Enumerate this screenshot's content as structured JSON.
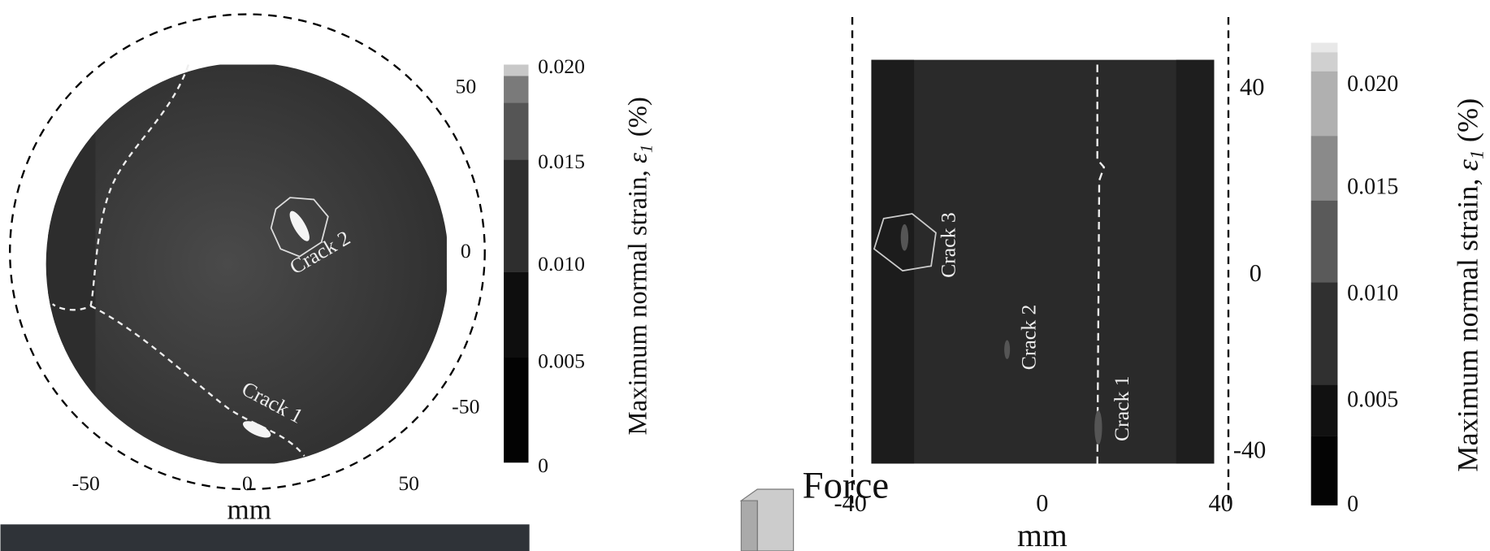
{
  "left_panel": {
    "y_ticks": [
      "50",
      "0",
      "-50"
    ],
    "x_ticks": [
      "-50",
      "0",
      "50"
    ],
    "x_label": "mm",
    "crack_labels": [
      "Crack 2",
      "Crack 1"
    ]
  },
  "left_colorbar": {
    "ticks": [
      "0.020",
      "0.015",
      "0.010",
      "0.005",
      "0"
    ],
    "title": "Maximum normal strain, ",
    "symbol": "ε",
    "subscript": "1",
    "unit": "(%)"
  },
  "right_panel": {
    "y_ticks": [
      "40",
      "0",
      "-40"
    ],
    "x_ticks": [
      "-40",
      "0",
      "40"
    ],
    "x_label": "mm",
    "crack_labels": [
      "Crack 3",
      "Crack 2",
      "Crack 1"
    ]
  },
  "right_colorbar": {
    "ticks": [
      "0.020",
      "0.015",
      "0.010",
      "0.005",
      "0"
    ],
    "title": "Maximum normal strain, ",
    "symbol": "ε",
    "subscript": "1",
    "unit": "(%)"
  },
  "force_label": "Force"
}
